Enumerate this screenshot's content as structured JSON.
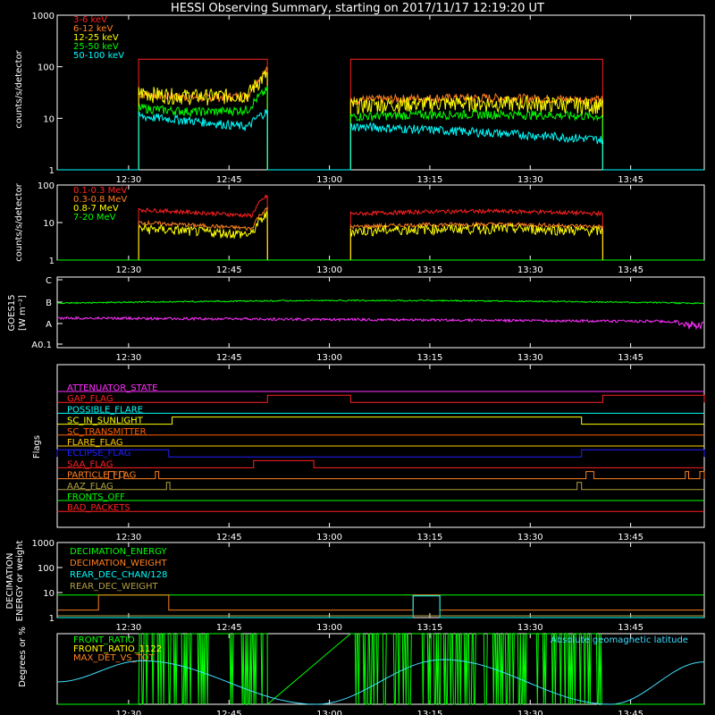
{
  "title": "HESSI Observing Summary, starting on 2017/11/17 12:19:20 UT",
  "colors": {
    "background": "#000000",
    "axis": "#ffffff",
    "red": "#ff2020",
    "orange": "#ff8020",
    "yellow": "#ffff00",
    "green": "#00ff00",
    "cyan": "#00ffff",
    "magenta": "#ff30ff",
    "blue": "#2020ff",
    "olive": "#b0a040",
    "gold": "#ffcc00",
    "darkorange": "#ff6000",
    "lightcyan": "#40e0ff"
  },
  "time_axis": {
    "start": "12:19:20",
    "end": "13:56:00",
    "tick_labels": [
      "12:30",
      "12:45",
      "13:00",
      "13:15",
      "13:30",
      "13:45"
    ],
    "tick_times": [
      "12:30",
      "12:45",
      "13:00",
      "13:15",
      "13:30",
      "13:45"
    ]
  },
  "chart_data": [
    {
      "type": "line",
      "ylabel": "counts/s/detector",
      "yscale": "log",
      "ylim": [
        1,
        1000
      ],
      "ytick_labels": [
        "1",
        "10",
        "100",
        "1000"
      ],
      "ytick_values": [
        1,
        10,
        100,
        1000
      ],
      "gaps": [
        [
          "12:50:45",
          "13:03:10"
        ]
      ],
      "active": [
        [
          "12:31:30",
          "12:50:45"
        ],
        [
          "13:03:10",
          "13:40:50"
        ]
      ],
      "series": [
        {
          "name": "3-6 keV",
          "color": "#ff2020",
          "level_first": 140,
          "level_second": 140,
          "shape": "flat"
        },
        {
          "name": "6-12 keV",
          "color": "#ff8020",
          "level_first": 30,
          "level_second": 25,
          "shape": "bump"
        },
        {
          "name": "12-25 keV",
          "color": "#ffff00",
          "level_first": 32,
          "level_second": 20,
          "shape": "bump"
        },
        {
          "name": "25-50 keV",
          "color": "#00ff00",
          "level_first": 16,
          "level_second": 12,
          "shape": "bump"
        },
        {
          "name": "50-100 keV",
          "color": "#00ffff",
          "level_first": 11,
          "level_second": 7,
          "shape": "fall"
        }
      ]
    },
    {
      "type": "line",
      "ylabel": "counts/s/detector",
      "yscale": "log",
      "ylim": [
        1,
        100
      ],
      "ytick_labels": [
        "1",
        "10",
        "100"
      ],
      "ytick_values": [
        1,
        10,
        100
      ],
      "active": [
        [
          "12:31:30",
          "12:50:45"
        ],
        [
          "13:03:10",
          "13:40:50"
        ]
      ],
      "series": [
        {
          "name": "0.1-0.3 MeV",
          "color": "#ff2020",
          "level_first": 22,
          "level_second": 20
        },
        {
          "name": "0.3-0.8 MeV",
          "color": "#ff8020",
          "level_first": 10,
          "level_second": 9
        },
        {
          "name": "0.8-7 MeV",
          "color": "#ffff00",
          "level_first": 7,
          "level_second": 7
        },
        {
          "name": "7-20 MeV",
          "color": "#00ff00",
          "level_first": 1,
          "level_second": 1
        }
      ]
    },
    {
      "type": "line",
      "ylabel": "GOES15",
      "ylabel2": "[W m⁻²]",
      "yscale": "log",
      "ytick_labels": [
        "C",
        "B",
        "A",
        "A0.1"
      ],
      "series": [
        {
          "color": "#00ff00",
          "class_level": "B",
          "position": 0.37
        },
        {
          "color": "#ff30ff",
          "class_level": "A",
          "position": 0.58
        }
      ]
    },
    {
      "type": "line",
      "ylabel": "Flags",
      "flags": [
        {
          "name": "ATTENUATOR_STATE",
          "color": "#ff30ff",
          "steps": []
        },
        {
          "name": "GAP_FLAG",
          "color": "#ff2020",
          "steps": [
            [
              "12:31:30",
              "12:50:45",
              0
            ],
            [
              "12:50:45",
              "13:03:10",
              1
            ],
            [
              "13:03:10",
              "13:40:50",
              0
            ],
            [
              "13:40:50",
              "13:56:00",
              1
            ]
          ]
        },
        {
          "name": "POSSIBLE_FLARE",
          "color": "#00ffff",
          "steps": []
        },
        {
          "name": "SC_IN_SUNLIGHT",
          "color": "#ffff00",
          "steps": [
            [
              "12:19:20",
              "12:36:30",
              0
            ],
            [
              "12:36:30",
              "13:37:40",
              1
            ],
            [
              "13:37:40",
              "13:56:00",
              0
            ]
          ]
        },
        {
          "name": "SC_TRANSMITTER",
          "color": "#ff6000",
          "steps": []
        },
        {
          "name": "FLARE_FLAG",
          "color": "#ffcc00",
          "steps": []
        },
        {
          "name": "ECLIPSE_FLAG",
          "color": "#2020ff",
          "steps": [
            [
              "12:19:20",
              "12:36:00",
              1
            ],
            [
              "12:36:00",
              "13:37:40",
              0
            ],
            [
              "13:37:40",
              "13:56:00",
              1
            ]
          ]
        },
        {
          "name": "SAA_FLAG",
          "color": "#ff2020",
          "steps": [
            [
              "12:48:40",
              "12:57:40",
              1
            ]
          ]
        },
        {
          "name": "PARTICLE_FLAG",
          "color": "#ff8020",
          "steps": [
            [
              "12:27:00",
              "12:27:50",
              1
            ],
            [
              "12:28:40",
              "12:29:20",
              1
            ],
            [
              "12:34:00",
              "12:34:30",
              1
            ],
            [
              "13:38:20",
              "13:39:30",
              1
            ],
            [
              "13:53:10",
              "13:53:40",
              1
            ],
            [
              "13:55:20",
              "13:56:00",
              1
            ]
          ]
        },
        {
          "name": "AAZ_FLAG",
          "color": "#b0a040",
          "steps": [
            [
              "12:35:40",
              "12:36:10",
              1
            ],
            [
              "13:37:00",
              "13:37:40",
              1
            ]
          ]
        },
        {
          "name": "FRONTS_OFF",
          "color": "#00ff00",
          "steps": []
        },
        {
          "name": "BAD_PACKETS",
          "color": "#ff2020",
          "steps": []
        }
      ]
    },
    {
      "type": "line",
      "ylabel": "DECIMATION",
      "ylabel2": "ENERGY or weight",
      "yscale": "log",
      "ylim": [
        1,
        1000
      ],
      "ytick_labels": [
        "1",
        "10",
        "100",
        "1000"
      ],
      "ytick_values": [
        1,
        10,
        100,
        1000
      ],
      "series": [
        {
          "name": "DECIMATION_ENERGY",
          "color": "#00ff00",
          "value": 8
        },
        {
          "name": "DECIMATION_WEIGHT",
          "color": "#ff8020",
          "value": 2,
          "high_segments": [
            [
              "12:25:30",
              "12:36:00",
              8
            ],
            [
              "13:12:30",
              "13:16:30",
              8
            ]
          ]
        },
        {
          "name": "REAR_DEC_CHAN/128",
          "color": "#00ffff",
          "value": 1,
          "high_segments": [
            [
              "13:12:30",
              "13:16:30",
              8
            ]
          ]
        },
        {
          "name": "REAR_DEC_WEIGHT",
          "color": "#b0a040",
          "value": 1
        }
      ]
    },
    {
      "type": "line",
      "ylabel": "Degrees or %",
      "ylim": [
        0,
        60
      ],
      "series": [
        {
          "name": "FRONT_RATIO",
          "color": "#00ff00"
        },
        {
          "name": "FRONT_RATIO_1122",
          "color": "#ffff00"
        },
        {
          "name": "MAX_DET_VS_TOT",
          "color": "#ff8020"
        },
        {
          "name": "Absolute geomagnetic latitude",
          "color": "#40e0ff",
          "peaks": [
            [
              "12:32:00",
              37
            ],
            [
              "13:17:00",
              38
            ],
            [
              "13:56:00",
              36
            ]
          ],
          "troughs": [
            [
              "12:19:20",
              19
            ],
            [
              "12:58:00",
              0
            ],
            [
              "13:42:00",
              0
            ]
          ]
        }
      ]
    }
  ]
}
